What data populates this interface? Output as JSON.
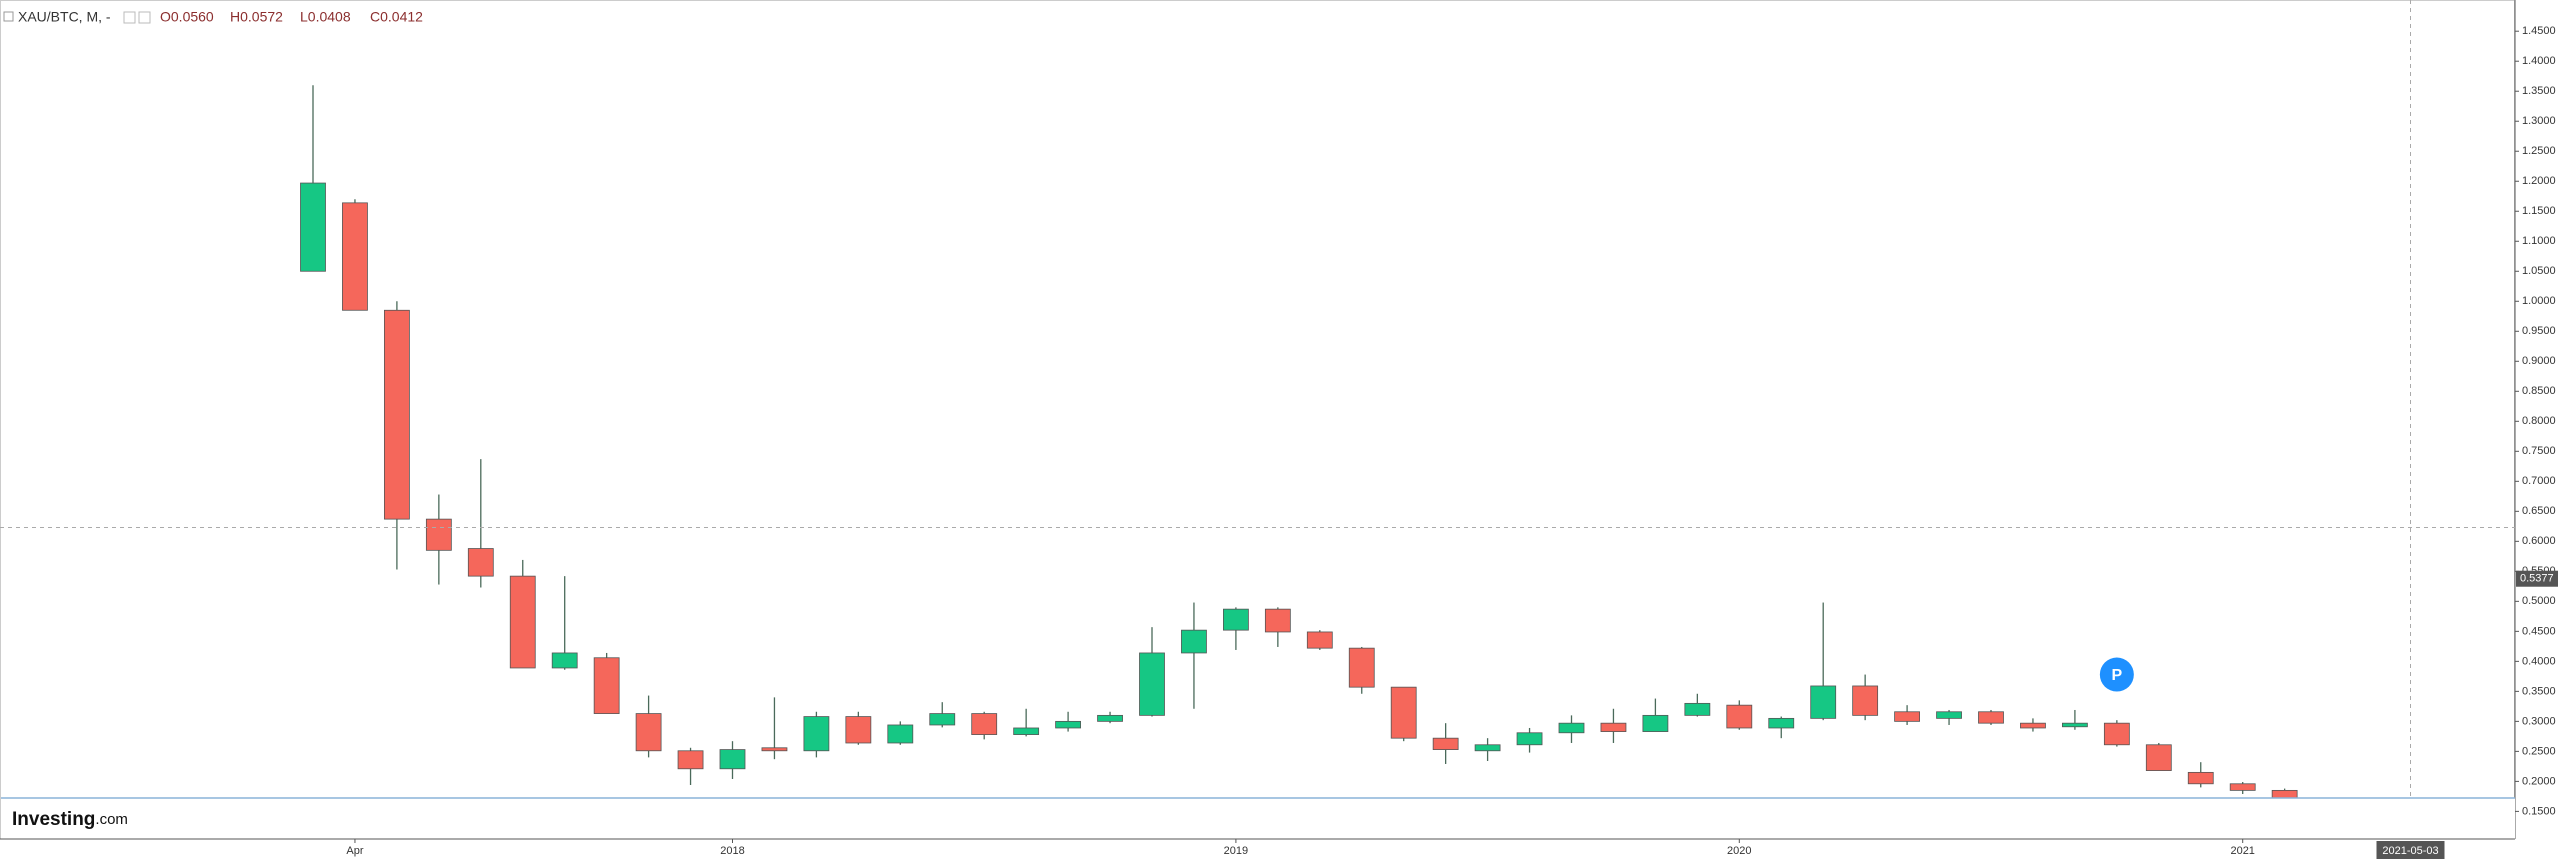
{
  "chart_data": {
    "type": "candlestick",
    "symbol": "XAU/BTC, M, -",
    "ohlc_legend": [
      "O0.0560",
      "H0.0572",
      "L0.0408",
      "C0.0412"
    ],
    "categories": [
      null,
      "Apr",
      null,
      null,
      null,
      null,
      null,
      null,
      null,
      null,
      "2018",
      null,
      null,
      null,
      null,
      null,
      null,
      null,
      null,
      null,
      null,
      null,
      "2019",
      null,
      null,
      null,
      null,
      null,
      null,
      null,
      null,
      null,
      null,
      null,
      "2020",
      null,
      null,
      null,
      null,
      null,
      null,
      null,
      null,
      null,
      null,
      null,
      "2021",
      null
    ],
    "open": [
      1.05,
      1.164,
      0.985,
      0.637,
      0.588,
      0.542,
      0.389,
      0.406,
      0.313,
      0.251,
      0.221,
      0.256,
      0.251,
      0.308,
      0.264,
      0.294,
      0.313,
      0.278,
      0.289,
      0.3,
      0.31,
      0.414,
      0.452,
      0.487,
      0.449,
      0.422,
      0.357,
      0.272,
      0.251,
      0.261,
      0.281,
      0.297,
      0.283,
      0.31,
      0.327,
      0.289,
      0.305,
      0.359,
      0.316,
      0.305,
      0.316,
      0.297,
      0.291,
      0.297,
      0.261,
      0.215,
      0.196,
      0.185
    ],
    "high": [
      1.36,
      1.17,
      1.0,
      0.678,
      0.737,
      0.569,
      0.542,
      0.414,
      0.343,
      0.256,
      0.267,
      0.34,
      0.316,
      0.316,
      0.3,
      0.332,
      0.316,
      0.321,
      0.316,
      0.316,
      0.457,
      0.498,
      0.49,
      0.49,
      0.452,
      0.424,
      0.357,
      0.297,
      0.272,
      0.289,
      0.31,
      0.321,
      0.338,
      0.346,
      0.335,
      0.308,
      0.498,
      0.378,
      0.327,
      0.319,
      0.319,
      0.305,
      0.319,
      0.302,
      0.264,
      0.232,
      0.199,
      0.188
    ],
    "low": [
      1.05,
      0.985,
      0.553,
      0.528,
      0.523,
      0.389,
      0.386,
      0.313,
      0.24,
      0.194,
      0.204,
      0.237,
      0.24,
      0.261,
      0.261,
      0.29,
      0.27,
      0.275,
      0.283,
      0.297,
      0.308,
      0.321,
      0.419,
      0.424,
      0.419,
      0.346,
      0.267,
      0.229,
      0.234,
      0.248,
      0.264,
      0.264,
      0.283,
      0.308,
      0.286,
      0.272,
      0.302,
      0.302,
      0.294,
      0.294,
      0.294,
      0.283,
      0.286,
      0.258,
      0.218,
      0.19,
      0.179,
      0.165
    ],
    "close": [
      1.197,
      0.985,
      0.637,
      0.585,
      0.542,
      0.389,
      0.414,
      0.313,
      0.251,
      0.221,
      0.253,
      0.251,
      0.308,
      0.264,
      0.294,
      0.313,
      0.278,
      0.289,
      0.3,
      0.31,
      0.414,
      0.452,
      0.487,
      0.449,
      0.422,
      0.357,
      0.272,
      0.253,
      0.261,
      0.281,
      0.297,
      0.283,
      0.31,
      0.33,
      0.289,
      0.305,
      0.359,
      0.31,
      0.3,
      0.316,
      0.297,
      0.289,
      0.297,
      0.261,
      0.218,
      0.196,
      0.185,
      0.17
    ],
    "up_color": "#16c784",
    "down_color": "#f5675b",
    "ylim": [
      0.104,
      1.502
    ],
    "yticks": [
      {
        "value": 0.15,
        "label": "0.1500"
      },
      {
        "value": 0.2,
        "label": "0.2000"
      },
      {
        "value": 0.25,
        "label": "0.2500"
      },
      {
        "value": 0.3,
        "label": "0.3000"
      },
      {
        "value": 0.35,
        "label": "0.3500"
      },
      {
        "value": 0.4,
        "label": "0.4000"
      },
      {
        "value": 0.45,
        "label": "0.4500"
      },
      {
        "value": 0.5,
        "label": "0.5000"
      },
      {
        "value": 0.55,
        "label": "0.5500"
      },
      {
        "value": 0.6,
        "label": "0.6000"
      },
      {
        "value": 0.65,
        "label": "0.6500"
      },
      {
        "value": 0.7,
        "label": "0.7000"
      },
      {
        "value": 0.75,
        "label": "0.7500"
      },
      {
        "value": 0.8,
        "label": "0.8000"
      },
      {
        "value": 0.85,
        "label": "0.8500"
      },
      {
        "value": 0.9,
        "label": "0.9000"
      },
      {
        "value": 0.95,
        "label": "0.9500"
      },
      {
        "value": 1.0,
        "label": "1.0000"
      },
      {
        "value": 1.05,
        "label": "1.0500"
      },
      {
        "value": 1.1,
        "label": "1.1000"
      },
      {
        "value": 1.15,
        "label": "1.1500"
      },
      {
        "value": 1.2,
        "label": "1.2000"
      },
      {
        "value": 1.25,
        "label": "1.2500"
      },
      {
        "value": 1.3,
        "label": "1.3000"
      },
      {
        "value": 1.35,
        "label": "1.3500"
      },
      {
        "value": 1.4,
        "label": "1.4000"
      },
      {
        "value": 1.45,
        "label": "1.4500"
      }
    ],
    "price_marker": {
      "value": 0.5377,
      "label": "0.5377"
    },
    "crosshair": {
      "index": 50,
      "y": 0.623,
      "label": "2021-05-03"
    },
    "annotation": {
      "index": 43,
      "y": 0.378,
      "text": "P"
    },
    "watermark": "Investing",
    "watermark_suffix": ".com"
  }
}
